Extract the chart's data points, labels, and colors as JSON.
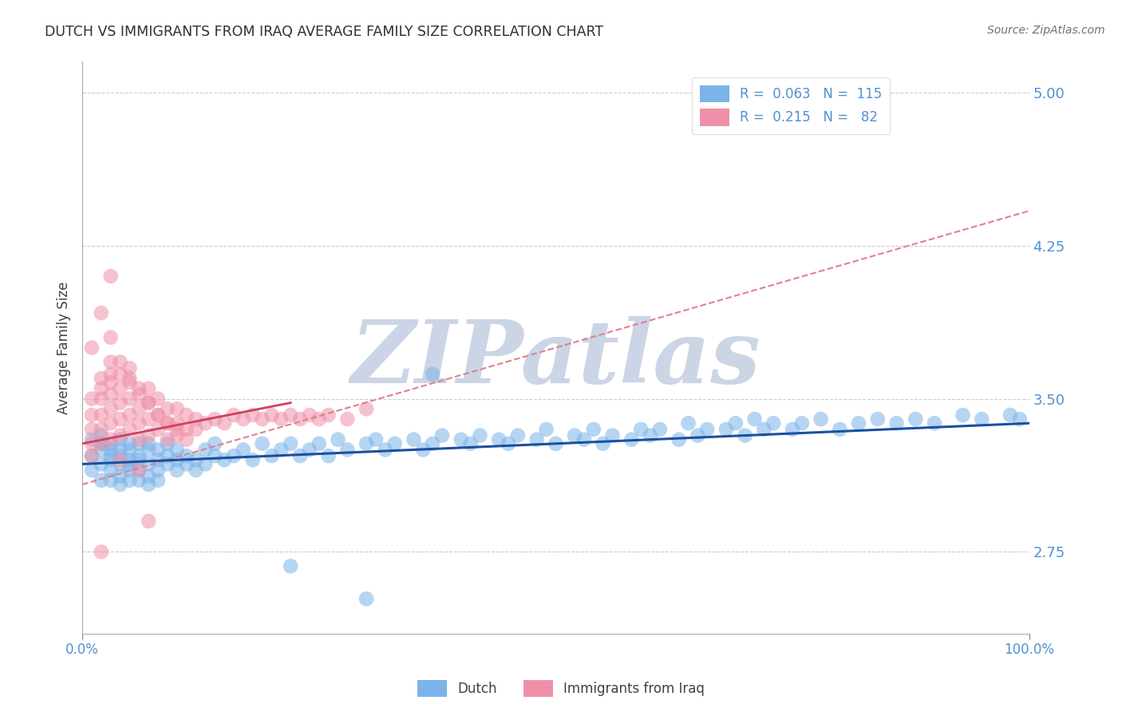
{
  "title": "DUTCH VS IMMIGRANTS FROM IRAQ AVERAGE FAMILY SIZE CORRELATION CHART",
  "source_text": "Source: ZipAtlas.com",
  "ylabel": "Average Family Size",
  "xlim": [
    0.0,
    1.0
  ],
  "ylim": [
    2.35,
    5.15
  ],
  "yticks": [
    2.75,
    3.5,
    4.25,
    5.0
  ],
  "xtick_labels": [
    "0.0%",
    "100.0%"
  ],
  "dutch_color": "#7ab4e8",
  "iraq_color": "#f090a8",
  "trend_dutch_color": "#1a50a0",
  "trend_iraq_color": "#d04060",
  "trend_iraq_dashed_color": "#e08090",
  "grid_color": "#cccccc",
  "axis_color": "#5090d0",
  "watermark_color": "#ccd5e5",
  "dutch_points_x": [
    0.01,
    0.01,
    0.01,
    0.02,
    0.02,
    0.02,
    0.02,
    0.02,
    0.03,
    0.03,
    0.03,
    0.03,
    0.03,
    0.03,
    0.04,
    0.04,
    0.04,
    0.04,
    0.04,
    0.04,
    0.05,
    0.05,
    0.05,
    0.05,
    0.05,
    0.05,
    0.06,
    0.06,
    0.06,
    0.06,
    0.06,
    0.07,
    0.07,
    0.07,
    0.07,
    0.07,
    0.08,
    0.08,
    0.08,
    0.08,
    0.09,
    0.09,
    0.09,
    0.1,
    0.1,
    0.1,
    0.11,
    0.11,
    0.12,
    0.12,
    0.13,
    0.13,
    0.14,
    0.14,
    0.15,
    0.16,
    0.17,
    0.18,
    0.19,
    0.2,
    0.21,
    0.22,
    0.23,
    0.24,
    0.25,
    0.26,
    0.27,
    0.28,
    0.3,
    0.31,
    0.32,
    0.33,
    0.35,
    0.36,
    0.37,
    0.38,
    0.4,
    0.41,
    0.42,
    0.44,
    0.45,
    0.46,
    0.48,
    0.49,
    0.5,
    0.52,
    0.53,
    0.54,
    0.55,
    0.56,
    0.58,
    0.59,
    0.6,
    0.61,
    0.63,
    0.64,
    0.65,
    0.66,
    0.68,
    0.69,
    0.7,
    0.71,
    0.72,
    0.73,
    0.75,
    0.76,
    0.78,
    0.8,
    0.82,
    0.84,
    0.86,
    0.88,
    0.9,
    0.93,
    0.95,
    0.98,
    0.99,
    0.37,
    0.22,
    0.3
  ],
  "dutch_points_y": [
    3.22,
    3.15,
    3.3,
    3.25,
    3.18,
    3.28,
    3.1,
    3.32,
    3.2,
    3.25,
    3.15,
    3.28,
    3.1,
    3.22,
    3.18,
    3.25,
    3.12,
    3.3,
    3.08,
    3.22,
    3.2,
    3.15,
    3.28,
    3.1,
    3.25,
    3.18,
    3.22,
    3.15,
    3.28,
    3.1,
    3.2,
    3.18,
    3.25,
    3.12,
    3.28,
    3.08,
    3.2,
    3.15,
    3.25,
    3.1,
    3.22,
    3.18,
    3.28,
    3.2,
    3.15,
    3.25,
    3.18,
    3.22,
    3.2,
    3.15,
    3.25,
    3.18,
    3.22,
    3.28,
    3.2,
    3.22,
    3.25,
    3.2,
    3.28,
    3.22,
    3.25,
    3.28,
    3.22,
    3.25,
    3.28,
    3.22,
    3.3,
    3.25,
    3.28,
    3.3,
    3.25,
    3.28,
    3.3,
    3.25,
    3.28,
    3.32,
    3.3,
    3.28,
    3.32,
    3.3,
    3.28,
    3.32,
    3.3,
    3.35,
    3.28,
    3.32,
    3.3,
    3.35,
    3.28,
    3.32,
    3.3,
    3.35,
    3.32,
    3.35,
    3.3,
    3.38,
    3.32,
    3.35,
    3.35,
    3.38,
    3.32,
    3.4,
    3.35,
    3.38,
    3.35,
    3.38,
    3.4,
    3.35,
    3.38,
    3.4,
    3.38,
    3.4,
    3.38,
    3.42,
    3.4,
    3.42,
    3.4,
    3.62,
    2.68,
    2.52
  ],
  "iraq_points_x": [
    0.01,
    0.01,
    0.01,
    0.01,
    0.01,
    0.02,
    0.02,
    0.02,
    0.02,
    0.02,
    0.02,
    0.03,
    0.03,
    0.03,
    0.03,
    0.03,
    0.03,
    0.03,
    0.04,
    0.04,
    0.04,
    0.04,
    0.04,
    0.05,
    0.05,
    0.05,
    0.05,
    0.05,
    0.06,
    0.06,
    0.06,
    0.06,
    0.07,
    0.07,
    0.07,
    0.07,
    0.08,
    0.08,
    0.08,
    0.09,
    0.09,
    0.09,
    0.1,
    0.1,
    0.1,
    0.11,
    0.11,
    0.12,
    0.12,
    0.13,
    0.14,
    0.15,
    0.16,
    0.17,
    0.18,
    0.19,
    0.2,
    0.21,
    0.22,
    0.23,
    0.24,
    0.25,
    0.26,
    0.28,
    0.3,
    0.01,
    0.02,
    0.03,
    0.03,
    0.04,
    0.05,
    0.06,
    0.07,
    0.08,
    0.09,
    0.1,
    0.11,
    0.07,
    0.02,
    0.04,
    0.06
  ],
  "iraq_points_y": [
    3.22,
    3.28,
    3.35,
    3.42,
    3.5,
    3.28,
    3.35,
    3.42,
    3.5,
    3.55,
    3.6,
    3.3,
    3.38,
    3.45,
    3.52,
    3.58,
    3.62,
    3.68,
    3.32,
    3.4,
    3.48,
    3.55,
    3.62,
    3.35,
    3.42,
    3.5,
    3.58,
    3.65,
    3.3,
    3.38,
    3.45,
    3.52,
    3.32,
    3.4,
    3.48,
    3.55,
    3.35,
    3.42,
    3.5,
    3.3,
    3.38,
    3.45,
    3.32,
    3.38,
    3.45,
    3.35,
    3.42,
    3.35,
    3.4,
    3.38,
    3.4,
    3.38,
    3.42,
    3.4,
    3.42,
    3.4,
    3.42,
    3.4,
    3.42,
    3.4,
    3.42,
    3.4,
    3.42,
    3.4,
    3.45,
    3.75,
    3.92,
    4.1,
    3.8,
    3.68,
    3.6,
    3.55,
    3.48,
    3.42,
    3.38,
    3.35,
    3.3,
    2.9,
    2.75,
    3.2,
    3.15
  ],
  "dutch_trend_x0": 0.0,
  "dutch_trend_y0": 3.18,
  "dutch_trend_x1": 1.0,
  "dutch_trend_y1": 3.38,
  "iraq_trend_solid_x0": 0.0,
  "iraq_trend_solid_y0": 3.28,
  "iraq_trend_solid_x1": 0.22,
  "iraq_trend_solid_y1": 3.48,
  "iraq_trend_dashed_x0": 0.0,
  "iraq_trend_dashed_y0": 3.08,
  "iraq_trend_dashed_x1": 1.0,
  "iraq_trend_dashed_y1": 4.42
}
